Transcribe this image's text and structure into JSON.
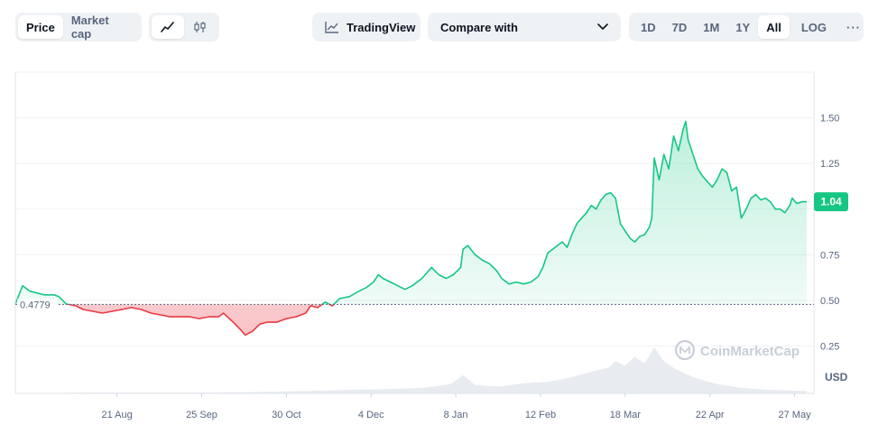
{
  "toolbar": {
    "view_tabs": [
      {
        "label": "Price",
        "active": true
      },
      {
        "label": "Market cap",
        "active": false
      }
    ],
    "chart_type_icons": [
      {
        "icon": "line-chart-icon",
        "active": true
      },
      {
        "icon": "candlestick-icon",
        "active": false
      }
    ],
    "tradingview_label": "TradingView",
    "compare_label": "Compare with",
    "ranges": [
      {
        "label": "1D",
        "active": false
      },
      {
        "label": "7D",
        "active": false
      },
      {
        "label": "1M",
        "active": false
      },
      {
        "label": "1Y",
        "active": false
      },
      {
        "label": "All",
        "active": true
      }
    ],
    "log_label": "LOG",
    "more_label": "···"
  },
  "chart_data": {
    "type": "line",
    "currency_label": "USD",
    "watermark": "CoinMarketCap",
    "baseline": {
      "value": 0.4779,
      "label": "0.4779"
    },
    "current_price": {
      "value": 1.04,
      "label": "1.04"
    },
    "ylim": [
      0.0,
      1.75
    ],
    "y_ticks": [
      {
        "v": 0.25,
        "label": "0.25"
      },
      {
        "v": 0.5,
        "label": "0.50"
      },
      {
        "v": 0.75,
        "label": "0.75"
      },
      {
        "v": 1.0,
        "label": ""
      },
      {
        "v": 1.25,
        "label": "1.25"
      },
      {
        "v": 1.5,
        "label": "1.50"
      }
    ],
    "x_ticks": [
      {
        "t": 42,
        "label": "21 Aug"
      },
      {
        "t": 77,
        "label": "25 Sep"
      },
      {
        "t": 112,
        "label": "30 Oct"
      },
      {
        "t": 147,
        "label": "4 Dec"
      },
      {
        "t": 182,
        "label": "8 Jan"
      },
      {
        "t": 217,
        "label": "12 Feb"
      },
      {
        "t": 252,
        "label": "18 Mar"
      },
      {
        "t": 287,
        "label": "22 Apr"
      },
      {
        "t": 322,
        "label": "27 May"
      }
    ],
    "xlim": [
      0,
      330
    ],
    "price": [
      [
        0,
        0.48
      ],
      [
        3,
        0.58
      ],
      [
        6,
        0.55
      ],
      [
        9,
        0.54
      ],
      [
        12,
        0.53
      ],
      [
        16,
        0.53
      ],
      [
        18,
        0.52
      ],
      [
        21,
        0.48
      ],
      [
        25,
        0.47
      ],
      [
        28,
        0.45
      ],
      [
        32,
        0.44
      ],
      [
        36,
        0.43
      ],
      [
        40,
        0.44
      ],
      [
        44,
        0.45
      ],
      [
        48,
        0.46
      ],
      [
        52,
        0.45
      ],
      [
        56,
        0.43
      ],
      [
        60,
        0.42
      ],
      [
        64,
        0.41
      ],
      [
        68,
        0.41
      ],
      [
        72,
        0.41
      ],
      [
        76,
        0.4
      ],
      [
        80,
        0.41
      ],
      [
        84,
        0.41
      ],
      [
        86,
        0.43
      ],
      [
        90,
        0.38
      ],
      [
        93,
        0.34
      ],
      [
        95,
        0.31
      ],
      [
        98,
        0.33
      ],
      [
        101,
        0.37
      ],
      [
        104,
        0.38
      ],
      [
        108,
        0.38
      ],
      [
        112,
        0.4
      ],
      [
        116,
        0.41
      ],
      [
        120,
        0.43
      ],
      [
        122,
        0.47
      ],
      [
        125,
        0.46
      ],
      [
        128,
        0.49
      ],
      [
        131,
        0.47
      ],
      [
        134,
        0.51
      ],
      [
        138,
        0.52
      ],
      [
        142,
        0.55
      ],
      [
        145,
        0.57
      ],
      [
        148,
        0.6
      ],
      [
        150,
        0.64
      ],
      [
        152,
        0.62
      ],
      [
        155,
        0.6
      ],
      [
        158,
        0.58
      ],
      [
        161,
        0.56
      ],
      [
        164,
        0.58
      ],
      [
        168,
        0.62
      ],
      [
        172,
        0.68
      ],
      [
        175,
        0.64
      ],
      [
        178,
        0.62
      ],
      [
        181,
        0.64
      ],
      [
        184,
        0.68
      ],
      [
        185,
        0.78
      ],
      [
        187,
        0.8
      ],
      [
        190,
        0.75
      ],
      [
        193,
        0.72
      ],
      [
        196,
        0.7
      ],
      [
        199,
        0.66
      ],
      [
        201,
        0.62
      ],
      [
        204,
        0.59
      ],
      [
        207,
        0.6
      ],
      [
        210,
        0.59
      ],
      [
        213,
        0.6
      ],
      [
        216,
        0.63
      ],
      [
        218,
        0.68
      ],
      [
        220,
        0.76
      ],
      [
        222,
        0.78
      ],
      [
        224,
        0.8
      ],
      [
        226,
        0.82
      ],
      [
        228,
        0.79
      ],
      [
        230,
        0.86
      ],
      [
        232,
        0.92
      ],
      [
        234,
        0.95
      ],
      [
        236,
        0.98
      ],
      [
        238,
        1.02
      ],
      [
        240,
        1.0
      ],
      [
        242,
        1.05
      ],
      [
        244,
        1.08
      ],
      [
        246,
        1.09
      ],
      [
        248,
        1.06
      ],
      [
        250,
        0.92
      ],
      [
        252,
        0.88
      ],
      [
        254,
        0.84
      ],
      [
        256,
        0.82
      ],
      [
        258,
        0.85
      ],
      [
        260,
        0.86
      ],
      [
        262,
        0.9
      ],
      [
        263,
        0.95
      ],
      [
        264,
        1.28
      ],
      [
        266,
        1.16
      ],
      [
        268,
        1.3
      ],
      [
        270,
        1.22
      ],
      [
        272,
        1.4
      ],
      [
        274,
        1.32
      ],
      [
        276,
        1.44
      ],
      [
        277,
        1.48
      ],
      [
        278,
        1.38
      ],
      [
        280,
        1.3
      ],
      [
        282,
        1.22
      ],
      [
        284,
        1.18
      ],
      [
        286,
        1.15
      ],
      [
        288,
        1.12
      ],
      [
        290,
        1.16
      ],
      [
        292,
        1.22
      ],
      [
        294,
        1.2
      ],
      [
        296,
        1.1
      ],
      [
        298,
        1.12
      ],
      [
        300,
        0.95
      ],
      [
        302,
        1.0
      ],
      [
        304,
        1.06
      ],
      [
        306,
        1.08
      ],
      [
        308,
        1.05
      ],
      [
        310,
        1.06
      ],
      [
        312,
        1.04
      ],
      [
        314,
        1.0
      ],
      [
        316,
        1.0
      ],
      [
        318,
        0.98
      ],
      [
        320,
        1.02
      ],
      [
        321,
        1.06
      ],
      [
        323,
        1.03
      ],
      [
        325,
        1.04
      ],
      [
        327,
        1.04
      ]
    ],
    "volume": [
      [
        0,
        0.01
      ],
      [
        40,
        0.02
      ],
      [
        80,
        0.02
      ],
      [
        100,
        0.03
      ],
      [
        120,
        0.05
      ],
      [
        140,
        0.08
      ],
      [
        160,
        0.1
      ],
      [
        170,
        0.13
      ],
      [
        180,
        0.2
      ],
      [
        185,
        0.4
      ],
      [
        190,
        0.18
      ],
      [
        200,
        0.15
      ],
      [
        210,
        0.22
      ],
      [
        220,
        0.25
      ],
      [
        225,
        0.3
      ],
      [
        230,
        0.35
      ],
      [
        240,
        0.5
      ],
      [
        245,
        0.55
      ],
      [
        248,
        0.7
      ],
      [
        252,
        0.6
      ],
      [
        256,
        0.8
      ],
      [
        260,
        0.65
      ],
      [
        264,
        1.0
      ],
      [
        268,
        0.7
      ],
      [
        272,
        0.55
      ],
      [
        280,
        0.35
      ],
      [
        290,
        0.2
      ],
      [
        300,
        0.12
      ],
      [
        310,
        0.08
      ],
      [
        320,
        0.06
      ],
      [
        327,
        0.05
      ]
    ]
  }
}
